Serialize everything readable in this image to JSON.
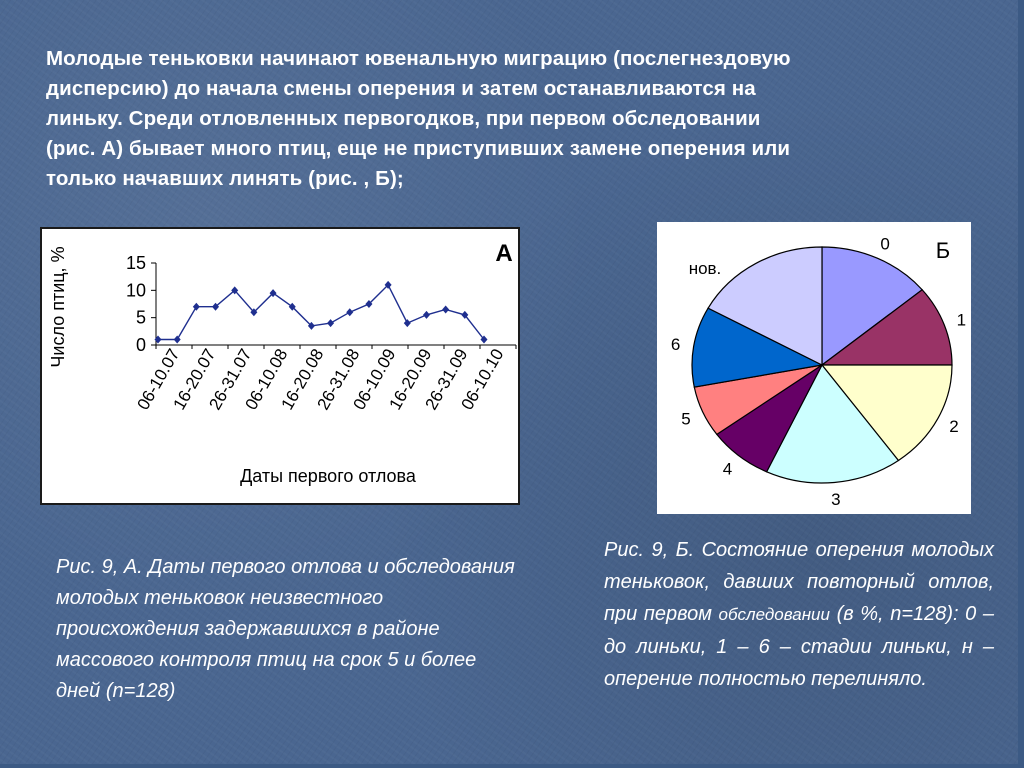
{
  "slide": {
    "intro_lines": [
      "Молодые теньковки начинают ювенальную миграцию (послегнездовую",
      "дисперсию) до начала смены оперения и затем останавливаются на",
      "линьку. Среди отловленных первогодков, при первом обследовании",
      "(рис.  А) бывает много птиц, еще не приступивших замене оперения или",
      "только начавших  линять (рис. , Б);"
    ],
    "caption_a": "Рис. 9, А. Даты первого отлова и обследования молодых теньковок неизвестного происхождения задержавшихся в районе массового контроля птиц на срок 5  и более дней (n=128)",
    "caption_b": {
      "part1": "Рис. 9, Б. Состояние оперения молодых теньковок, давших повторный отлов,  при первом ",
      "part2_small": "обследовании",
      "part3": " (в %, n=128):  0 – до линьки, 1 – 6 – стадии линьки, н – оперение полностью перелиняло."
    },
    "colors": {
      "background": "#4a6690",
      "line": "#1f2f8f",
      "pie": [
        "#9999ff",
        "#993366",
        "#ffffcc",
        "#ccffff",
        "#660066",
        "#ff8080",
        "#0066cc",
        "#ccccff"
      ]
    }
  },
  "chart_data": [
    {
      "type": "line",
      "panel_label": "А",
      "xlabel": "Даты первого отлова",
      "ylabel": "Число птиц, %",
      "ylim": [
        0,
        15
      ],
      "yticks": [
        0,
        5,
        10,
        15
      ],
      "grid": false,
      "x_tick_labels": [
        "06-10.07",
        "16-20.07",
        "26-31.07",
        "06-10.08",
        "16-20.08",
        "26-31.08",
        "06-10.09",
        "16-20.09",
        "26-31.09",
        "06-10.10"
      ],
      "values": [
        1,
        1,
        7,
        7,
        10,
        6,
        9.5,
        7,
        3.5,
        4,
        6,
        7.5,
        11,
        4,
        5.5,
        6.5,
        5.5,
        1
      ]
    },
    {
      "type": "pie",
      "panel_label": "Б",
      "labels": [
        "0",
        "1",
        "2",
        "3",
        "4",
        "5",
        "6",
        "нов."
      ],
      "values": [
        14,
        11,
        15,
        17,
        8,
        7,
        11,
        17
      ]
    }
  ]
}
